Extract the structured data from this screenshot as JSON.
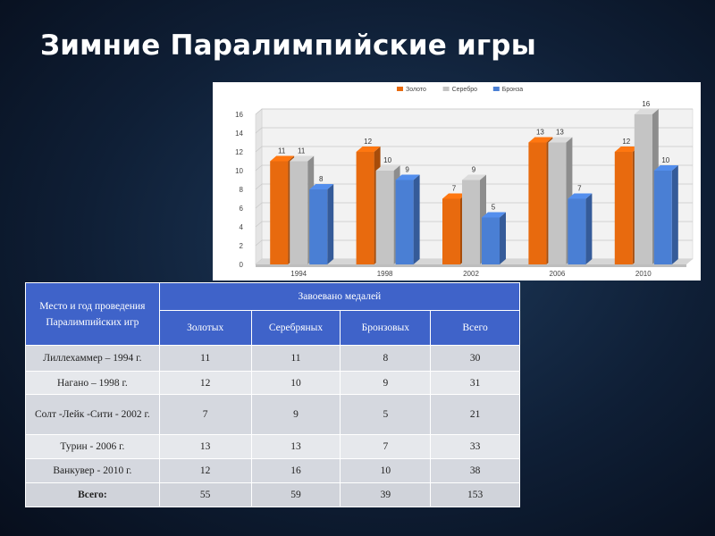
{
  "title": "Зимние Паралимпийские игры",
  "chart_data": {
    "type": "bar",
    "categories": [
      "1994",
      "1998",
      "2002",
      "2006",
      "2010"
    ],
    "series": [
      {
        "name": "Золото",
        "values": [
          11,
          12,
          7,
          13,
          12
        ],
        "color": "#e86a0e"
      },
      {
        "name": "Серебро",
        "values": [
          11,
          10,
          9,
          13,
          16
        ],
        "color": "#c4c4c4"
      },
      {
        "name": "Бронза",
        "values": [
          8,
          9,
          5,
          7,
          10
        ],
        "color": "#4a7fd4"
      }
    ],
    "yticks": [
      "0",
      "2",
      "4",
      "6",
      "8",
      "10",
      "12",
      "14",
      "16"
    ],
    "ylim": [
      0,
      16
    ],
    "grid": true,
    "legend": "top"
  },
  "table": {
    "header_place": "Место и год проведения Паралимпийских игр",
    "header_won": "Завоевано медалей",
    "columns": [
      "Золотых",
      "Серебряных",
      "Бронзовых",
      "Всего"
    ],
    "rows": [
      {
        "place": "Лиллехаммер – 1994 г.",
        "gold": "11",
        "silver": "11",
        "bronze": "8",
        "total": "30"
      },
      {
        "place": "Нагано – 1998 г.",
        "gold": "12",
        "silver": "10",
        "bronze": "9",
        "total": "31"
      },
      {
        "place": "Солт -Лейк -Сити - 2002 г.",
        "gold": "7",
        "silver": "9",
        "bronze": "5",
        "total": "21"
      },
      {
        "place": "Турин - 2006 г.",
        "gold": "13",
        "silver": "13",
        "bronze": "7",
        "total": "33"
      },
      {
        "place": "Ванкувер - 2010 г.",
        "gold": "12",
        "silver": "16",
        "bronze": "10",
        "total": "38"
      }
    ],
    "total_row": {
      "place": "Всего:",
      "gold": "55",
      "silver": "59",
      "bronze": "39",
      "total": "153"
    }
  }
}
